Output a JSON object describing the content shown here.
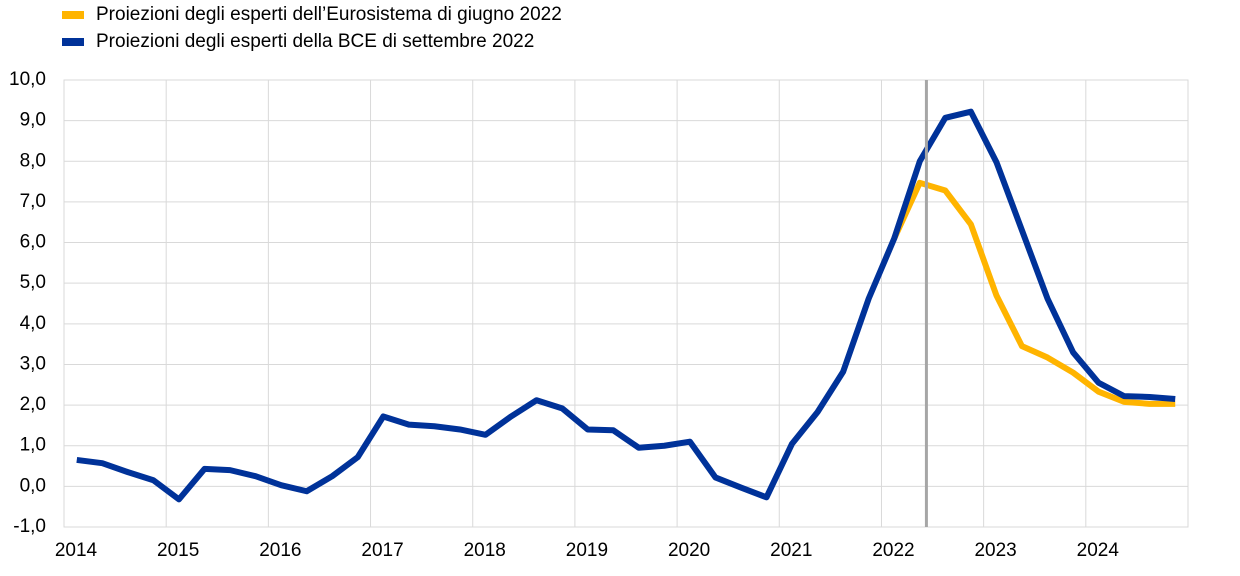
{
  "chart_data": {
    "type": "line",
    "x": [
      2014.125,
      2014.375,
      2014.625,
      2014.875,
      2015.125,
      2015.375,
      2015.625,
      2015.875,
      2016.125,
      2016.375,
      2016.625,
      2016.875,
      2017.125,
      2017.375,
      2017.625,
      2017.875,
      2018.125,
      2018.375,
      2018.625,
      2018.875,
      2019.125,
      2019.375,
      2019.625,
      2019.875,
      2020.125,
      2020.375,
      2020.625,
      2020.875,
      2021.125,
      2021.375,
      2021.625,
      2021.875,
      2022.125,
      2022.375,
      2022.625,
      2022.875,
      2023.125,
      2023.375,
      2023.625,
      2023.875,
      2024.125,
      2024.375,
      2024.625,
      2024.875
    ],
    "series": [
      {
        "name": "Proiezioni degli esperti dell’Eurosistema di giugno 2022",
        "color": "#ffb400",
        "values": [
          null,
          null,
          null,
          null,
          null,
          null,
          null,
          null,
          null,
          null,
          null,
          null,
          null,
          null,
          null,
          null,
          null,
          null,
          null,
          null,
          null,
          null,
          null,
          null,
          null,
          null,
          null,
          null,
          null,
          null,
          null,
          null,
          6.1,
          7.47,
          7.28,
          6.45,
          4.7,
          3.45,
          3.17,
          2.8,
          2.33,
          2.08,
          2.03,
          2.03
        ]
      },
      {
        "name": "Proiezioni degli esperti della BCE di settembre 2022",
        "color": "#003299",
        "values": [
          0.65,
          0.57,
          0.35,
          0.15,
          -0.32,
          0.43,
          0.4,
          0.25,
          0.03,
          -0.12,
          0.25,
          0.72,
          1.72,
          1.52,
          1.48,
          1.4,
          1.27,
          1.72,
          2.12,
          1.92,
          1.4,
          1.38,
          0.95,
          1.0,
          1.1,
          0.22,
          -0.03,
          -0.27,
          1.05,
          1.83,
          2.82,
          4.62,
          6.1,
          8.0,
          9.07,
          9.22,
          7.98,
          6.3,
          4.62,
          3.3,
          2.55,
          2.22,
          2.2,
          2.15
        ]
      }
    ],
    "xlim": [
      2014,
      2025
    ],
    "xticks": [
      2014,
      2015,
      2016,
      2017,
      2018,
      2019,
      2020,
      2021,
      2022,
      2023,
      2024
    ],
    "ylim": [
      -1,
      10
    ],
    "yticks": [
      {
        "value": -1,
        "label": "-1,0"
      },
      {
        "value": 0,
        "label": "0,0"
      },
      {
        "value": 1,
        "label": "1,0"
      },
      {
        "value": 2,
        "label": "2,0"
      },
      {
        "value": 3,
        "label": "3,0"
      },
      {
        "value": 4,
        "label": "4,0"
      },
      {
        "value": 5,
        "label": "5,0"
      },
      {
        "value": 6,
        "label": "6,0"
      },
      {
        "value": 7,
        "label": "7,0"
      },
      {
        "value": 8,
        "label": "8,0"
      },
      {
        "value": 9,
        "label": "9,0"
      },
      {
        "value": 10,
        "label": "10,0"
      }
    ],
    "vline_x": 2022.44,
    "grid": true
  }
}
